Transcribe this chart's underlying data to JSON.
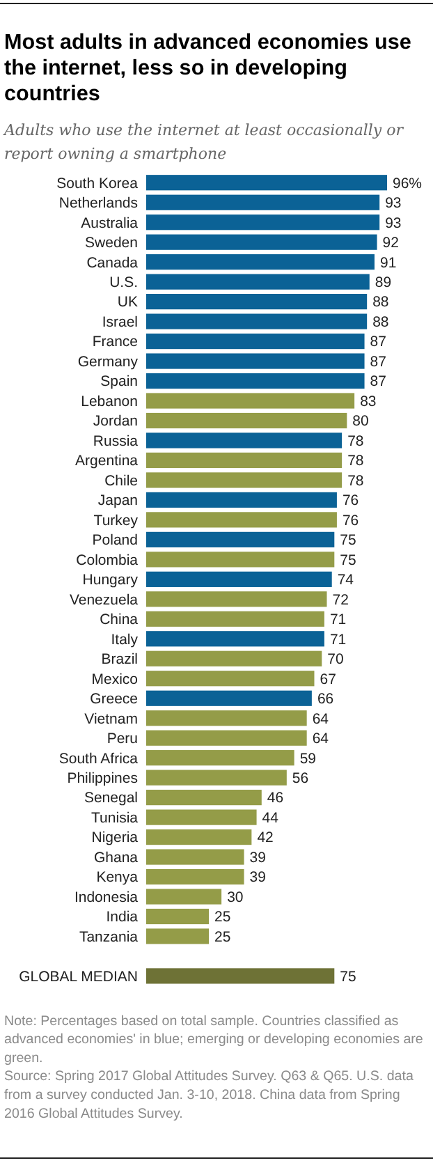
{
  "chart_data": {
    "type": "bar",
    "orientation": "horizontal",
    "title": "Most adults in advanced economies use the internet, less so in developing countries",
    "subtitle": "Adults who use the internet at least occasionally or report owning a smartphone",
    "categories": [
      "South Korea",
      "Netherlands",
      "Australia",
      "Sweden",
      "Canada",
      "U.S.",
      "UK",
      "Israel",
      "France",
      "Germany",
      "Spain",
      "Lebanon",
      "Jordan",
      "Russia",
      "Argentina",
      "Chile",
      "Japan",
      "Turkey",
      "Poland",
      "Colombia",
      "Hungary",
      "Venezuela",
      "China",
      "Italy",
      "Brazil",
      "Mexico",
      "Greece",
      "Vietnam",
      "Peru",
      "South Africa",
      "Philippines",
      "Senegal",
      "Tunisia",
      "Nigeria",
      "Ghana",
      "Kenya",
      "Indonesia",
      "India",
      "Tanzania",
      null,
      "GLOBAL MEDIAN"
    ],
    "values": [
      96,
      93,
      93,
      92,
      91,
      89,
      88,
      88,
      87,
      87,
      87,
      83,
      80,
      78,
      78,
      78,
      76,
      76,
      75,
      75,
      74,
      72,
      71,
      71,
      70,
      67,
      66,
      64,
      64,
      59,
      56,
      46,
      44,
      42,
      39,
      39,
      30,
      25,
      25,
      null,
      75
    ],
    "value_labels": [
      "96%",
      "93",
      "93",
      "92",
      "91",
      "89",
      "88",
      "88",
      "87",
      "87",
      "87",
      "83",
      "80",
      "78",
      "78",
      "78",
      "76",
      "76",
      "75",
      "75",
      "74",
      "72",
      "71",
      "71",
      "70",
      "67",
      "66",
      "64",
      "64",
      "59",
      "56",
      "46",
      "44",
      "42",
      "39",
      "39",
      "30",
      "25",
      "25",
      null,
      "75"
    ],
    "colors": [
      "#0b6296",
      "#0b6296",
      "#0b6296",
      "#0b6296",
      "#0b6296",
      "#0b6296",
      "#0b6296",
      "#0b6296",
      "#0b6296",
      "#0b6296",
      "#0b6296",
      "#949c48",
      "#949c48",
      "#0b6296",
      "#949c48",
      "#949c48",
      "#0b6296",
      "#949c48",
      "#0b6296",
      "#949c48",
      "#0b6296",
      "#949c48",
      "#949c48",
      "#0b6296",
      "#949c48",
      "#949c48",
      "#0b6296",
      "#949c48",
      "#949c48",
      "#949c48",
      "#949c48",
      "#949c48",
      "#949c48",
      "#949c48",
      "#949c48",
      "#949c48",
      "#949c48",
      "#949c48",
      "#949c48",
      null,
      "#6e7236"
    ],
    "tick_labels": "y",
    "annotations": [
      "Note: Percentages based on total sample. Countries classified as advanced economies' in blue; emerging or developing economies are green.",
      "Source: Spring 2017 Global Attitudes Survey. Q63 & Q65. U.S. data from a survey conducted Jan. 3-10, 2018. China data from Spring 2016 Global Attitudes Survey."
    ]
  }
}
